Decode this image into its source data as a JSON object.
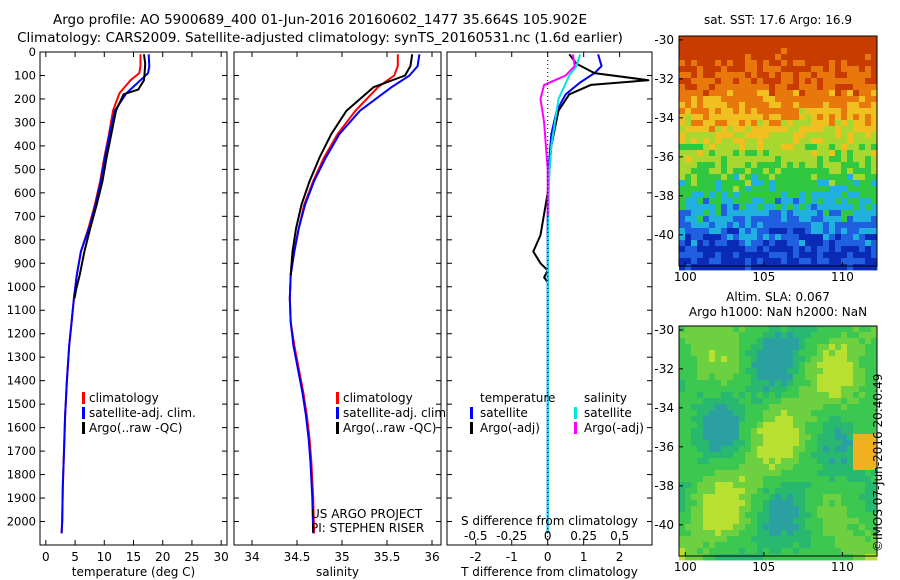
{
  "title": {
    "line1": "Argo profile: AO 5900689_400 01-Jun-2016 20160602_1477 35.664S 105.902E",
    "line2": "Climatology: CARS2009. Satellite-adjusted climatology: synTS_20160531.nc (1.6d earlier)"
  },
  "stamp": "©IMOS 07-Jun-2016 20:40:49",
  "colors": {
    "climatology": "#ff0000",
    "satellite": "#0000ff",
    "argo": "#000000",
    "sal_sat": "#00e5e5",
    "sal_argo": "#ff00ff"
  },
  "chart_data": [
    {
      "type": "line",
      "id": "temperature",
      "xlabel": "temperature (deg C)",
      "ylabel": "",
      "xlim": [
        -1,
        31
      ],
      "ylim": [
        2100,
        0
      ],
      "xticks": [
        "0",
        "5",
        "10",
        "15",
        "20",
        "25",
        "30"
      ],
      "yticks": [
        "0",
        "100",
        "200",
        "300",
        "400",
        "500",
        "600",
        "700",
        "800",
        "900",
        "1000",
        "1100",
        "1200",
        "1300",
        "1400",
        "1500",
        "1600",
        "1700",
        "1800",
        "1900",
        "2000"
      ],
      "legend": [
        "climatology",
        "satellite-adj. clim.",
        "Argo(..raw -QC)"
      ],
      "series": [
        {
          "name": "climatology",
          "color": "#ff0000",
          "x": [
            16.2,
            16.2,
            16.0,
            14.5,
            12.6,
            11.5,
            10.8,
            10.0,
            9.3,
            8.4,
            7.3,
            6.0,
            5.3,
            4.8,
            4.4,
            4.0,
            3.6,
            3.3,
            3.1,
            2.9,
            2.8,
            2.7
          ],
          "y": [
            10,
            60,
            90,
            120,
            175,
            250,
            350,
            450,
            550,
            650,
            750,
            850,
            950,
            1050,
            1150,
            1250,
            1400,
            1550,
            1700,
            1850,
            2000,
            2050
          ]
        },
        {
          "name": "satellite-adj. clim.",
          "color": "#0000ff",
          "x": [
            17.6,
            17.7,
            17.5,
            16.2,
            13.8,
            11.8,
            10.9,
            10.1,
            9.4,
            8.5,
            7.4,
            6.0,
            5.3,
            4.8,
            4.4,
            4.0,
            3.6,
            3.3,
            3.1,
            2.9,
            2.8,
            2.7
          ],
          "y": [
            10,
            60,
            90,
            120,
            175,
            250,
            350,
            450,
            550,
            650,
            750,
            850,
            950,
            1050,
            1150,
            1250,
            1400,
            1550,
            1700,
            1850,
            2000,
            2050
          ]
        },
        {
          "name": "Argo(..raw -QC)",
          "color": "#000000",
          "x": [
            16.8,
            17.0,
            16.9,
            16.8,
            16.3,
            15.8,
            13.3,
            12.0,
            11.2,
            10.4,
            9.7,
            8.7,
            7.6,
            6.6,
            5.8,
            5.2,
            4.9
          ],
          "y": [
            10,
            50,
            90,
            120,
            140,
            160,
            180,
            250,
            350,
            450,
            550,
            650,
            750,
            850,
            950,
            1010,
            1050
          ]
        }
      ]
    },
    {
      "type": "line",
      "id": "salinity",
      "xlabel": "salinity",
      "xlim": [
        33.8,
        36.1
      ],
      "ylim": [
        2100,
        0
      ],
      "xticks": [
        "34",
        "34.5",
        "35",
        "35.5",
        "36"
      ],
      "legend": [
        "climatology",
        "satellite-adj. clim.",
        "Argo(..raw -QC)"
      ],
      "annotation": [
        "US ARGO PROJECT",
        "PI: STEPHEN RISER"
      ],
      "series": [
        {
          "name": "climatology",
          "color": "#ff0000",
          "x": [
            35.62,
            35.62,
            35.58,
            35.4,
            35.15,
            34.95,
            34.8,
            34.68,
            34.58,
            34.52,
            34.47,
            34.43,
            34.42,
            34.43,
            34.47,
            34.52,
            34.57,
            34.61,
            34.64,
            34.66,
            34.68,
            34.69
          ],
          "y": [
            10,
            60,
            100,
            150,
            250,
            350,
            450,
            550,
            650,
            750,
            850,
            950,
            1050,
            1150,
            1250,
            1350,
            1450,
            1550,
            1650,
            1750,
            1900,
            2050
          ]
        },
        {
          "name": "satellite-adj. clim.",
          "color": "#0000ff",
          "x": [
            35.86,
            35.84,
            35.75,
            35.55,
            35.2,
            34.97,
            34.82,
            34.69,
            34.59,
            34.52,
            34.47,
            34.43,
            34.42,
            34.43,
            34.46,
            34.51,
            34.56,
            34.6,
            34.63,
            34.65,
            34.67,
            34.68
          ],
          "y": [
            10,
            60,
            100,
            150,
            250,
            350,
            450,
            550,
            650,
            750,
            850,
            950,
            1050,
            1150,
            1250,
            1350,
            1450,
            1550,
            1650,
            1750,
            1900,
            2050
          ]
        },
        {
          "name": "Argo(..raw -QC)",
          "color": "#000000",
          "x": [
            35.78,
            35.76,
            35.7,
            35.35,
            35.05,
            34.88,
            34.75,
            34.64,
            34.55,
            34.49,
            34.45,
            34.43
          ],
          "y": [
            10,
            60,
            100,
            150,
            250,
            350,
            450,
            550,
            650,
            750,
            850,
            950
          ]
        }
      ]
    },
    {
      "type": "line",
      "id": "difference",
      "xlabel": "T difference from climatology",
      "xlabel_top": "S difference from climatology",
      "xlim": [
        -2.8,
        2.9
      ],
      "ylim": [
        2100,
        0
      ],
      "xticks": [
        "-2",
        "-1",
        "0",
        "1",
        "2"
      ],
      "xticks_top": [
        "-0.5",
        "-0.25",
        "0",
        "0.25",
        "0.5"
      ],
      "legend_titles": [
        "temperature",
        "salinity"
      ],
      "legend": [
        "satellite",
        "Argo(-adj)",
        "satellite",
        "Argo(-adj)"
      ],
      "series": [
        {
          "name": "T satellite",
          "color": "#0000ff",
          "x": [
            1.4,
            1.5,
            1.3,
            0.9,
            0.5,
            0.25,
            0.1,
            0.05,
            0.02,
            0,
            0,
            0,
            0,
            0,
            0,
            0,
            0
          ],
          "y": [
            10,
            60,
            90,
            130,
            180,
            250,
            350,
            450,
            550,
            700,
            850,
            1000,
            1200,
            1400,
            1600,
            1800,
            2050
          ]
        },
        {
          "name": "T Argo(-adj)",
          "color": "#000000",
          "x": [
            0.6,
            0.8,
            1.3,
            2.8,
            1.2,
            0.6,
            0.3,
            0.1,
            0,
            -0.2,
            -0.4,
            -0.2,
            0,
            -0.1,
            0
          ],
          "y": [
            10,
            50,
            90,
            120,
            140,
            180,
            250,
            400,
            600,
            780,
            850,
            900,
            930,
            960,
            980
          ]
        },
        {
          "name": "S satellite",
          "color": "#00e5e5",
          "x": [
            0.9,
            0.8,
            0.6,
            0.45,
            0.3,
            0.2,
            0.1,
            0.05,
            0.03,
            0.02,
            0,
            0,
            0,
            0,
            0,
            0
          ],
          "y": [
            10,
            60,
            100,
            150,
            200,
            300,
            400,
            500,
            600,
            700,
            850,
            1000,
            1200,
            1500,
            1800,
            2050
          ]
        },
        {
          "name": "S Argo(-adj)",
          "color": "#ff00ff",
          "x": [
            0.7,
            0.75,
            0.5,
            -0.1,
            -0.2,
            -0.1,
            -0.05,
            0,
            0,
            0
          ],
          "y": [
            10,
            60,
            100,
            140,
            200,
            300,
            400,
            500,
            600,
            700
          ]
        }
      ]
    },
    {
      "type": "heatmap",
      "id": "sst_map",
      "title": "sat. SST: 17.6 Argo: 16.9",
      "xticks": [
        "100",
        "105",
        "110"
      ],
      "yticks": [
        "-30",
        "-32",
        "-34",
        "-36",
        "-38",
        "-40"
      ],
      "xlim": [
        99.6,
        112.2
      ],
      "ylim": [
        -41.6,
        -29.8
      ]
    },
    {
      "type": "heatmap",
      "id": "sla_map",
      "title": [
        "Altim. SLA: 0.067",
        "Argo h1000: NaN h2000: NaN"
      ],
      "xticks": [
        "100",
        "105",
        "110"
      ],
      "yticks": [
        "-30",
        "-32",
        "-34",
        "-36",
        "-38",
        "-40"
      ],
      "xlim": [
        99.6,
        112.2
      ],
      "ylim": [
        -41.6,
        -29.8
      ]
    }
  ]
}
